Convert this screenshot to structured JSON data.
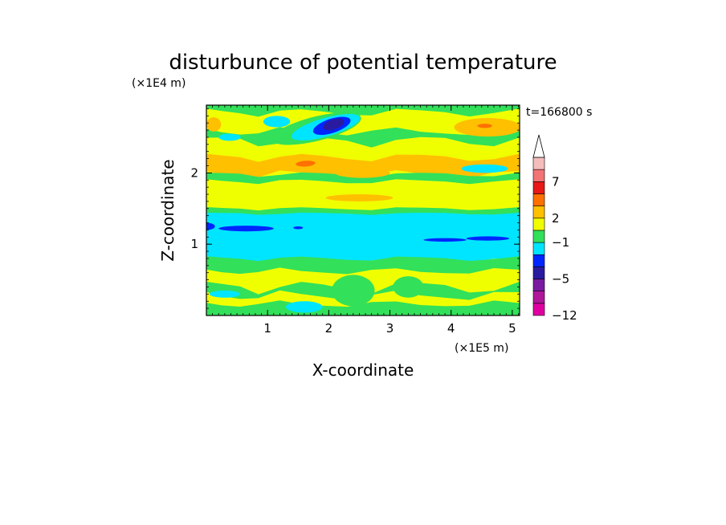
{
  "chart_data": {
    "type": "heatmap",
    "title": "disturbunce of potential temperature",
    "time_label": "t=166800 s",
    "xlabel": "X-coordinate",
    "ylabel": "Z-coordinate",
    "x_unit": "(×1E5 m)",
    "y_unit": "(×1E4 m)",
    "xlim": [
      0,
      5.12
    ],
    "ylim": [
      0,
      2.95
    ],
    "xticks": [
      1,
      2,
      3,
      4,
      5
    ],
    "yticks": [
      1,
      2
    ],
    "x_tick_labels": [
      "1",
      "2",
      "3",
      "4",
      "5"
    ],
    "y_tick_labels": [
      "1",
      "2"
    ],
    "colorbar": {
      "colors": [
        "#e000a0",
        "#b0169a",
        "#7a1aa0",
        "#2a1aa0",
        "#0026ff",
        "#00e5ff",
        "#32e05a",
        "#f0ff00",
        "#ffc000",
        "#ff7000",
        "#e81818",
        "#f27474",
        "#f5bcbc"
      ],
      "tick_labels": [
        "-12",
        "-5",
        "-1",
        "2",
        "7"
      ],
      "extend": "max"
    },
    "field_bands": [
      {
        "z_from": 2.55,
        "z_to": 2.95,
        "class": "green/yellow mixed"
      },
      {
        "z_from": 2.1,
        "z_to": 2.55,
        "class": "yellow"
      },
      {
        "z_from": 1.85,
        "z_to": 2.1,
        "class": "orange"
      },
      {
        "z_from": 1.45,
        "z_to": 1.85,
        "class": "yellow"
      },
      {
        "z_from": 0.75,
        "z_to": 1.45,
        "class": "cyan"
      },
      {
        "z_from": 0.55,
        "z_to": 0.75,
        "class": "green"
      },
      {
        "z_from": 0.0,
        "z_to": 0.55,
        "class": "yellow"
      }
    ],
    "features": [
      {
        "x": 2.05,
        "z": 2.65,
        "class": "dark blue minimum"
      },
      {
        "x": 0.65,
        "z": 1.22,
        "class": "blue streak"
      },
      {
        "x": 1.65,
        "z": 2.12,
        "class": "orange maximum"
      },
      {
        "x": 4.6,
        "z": 2.65,
        "class": "orange maximum"
      }
    ]
  }
}
